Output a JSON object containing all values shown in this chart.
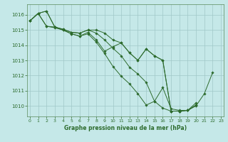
{
  "background_color": "#c5e8e8",
  "grid_color": "#a0c8c8",
  "line_color": "#2d6b2d",
  "marker_color": "#2d6b2d",
  "xlabel": "Graphe pression niveau de la mer (hPa)",
  "xlabel_color": "#2d6b2d",
  "tick_color": "#2d6b2d",
  "axis_color": "#5a8a5a",
  "ylim": [
    1009.3,
    1016.7
  ],
  "xlim": [
    -0.3,
    23.3
  ],
  "yticks": [
    1010,
    1011,
    1012,
    1013,
    1014,
    1015,
    1016
  ],
  "xticks": [
    0,
    1,
    2,
    3,
    4,
    5,
    6,
    7,
    8,
    9,
    10,
    11,
    12,
    13,
    14,
    15,
    16,
    17,
    18,
    19,
    20,
    21,
    22,
    23
  ],
  "series": [
    [
      1015.6,
      1016.1,
      1016.25,
      1015.2,
      1015.05,
      1014.85,
      1014.8,
      1015.0,
      1014.8,
      1014.35,
      1013.8,
      1013.3,
      1012.55,
      1012.1,
      1011.55,
      1010.3,
      1011.2,
      1009.8,
      1009.7,
      1009.7,
      1010.0,
      1010.8,
      1012.2,
      null
    ],
    [
      1015.6,
      1016.1,
      1015.25,
      1015.2,
      1015.0,
      1014.75,
      1014.6,
      1014.75,
      1014.2,
      1013.45,
      1012.6,
      1011.95,
      1011.45,
      1010.8,
      1010.05,
      1010.3,
      1009.85,
      1009.65,
      1009.65,
      1009.7,
      1010.05,
      null,
      null,
      null
    ],
    [
      1015.6,
      1016.1,
      1015.25,
      1015.15,
      1015.0,
      1014.75,
      1014.6,
      1014.85,
      1014.35,
      1013.6,
      1013.9,
      1014.15,
      1013.5,
      1013.0,
      1013.75,
      1013.3,
      1013.0,
      1009.65,
      1009.65,
      1009.7,
      1010.2,
      null,
      null,
      null
    ],
    [
      1015.6,
      1016.1,
      1016.25,
      1015.2,
      1015.05,
      1014.85,
      1014.8,
      1015.0,
      1015.0,
      1014.8,
      1014.35,
      1014.15,
      1013.5,
      1013.0,
      1013.75,
      1013.3,
      1013.0,
      1009.65,
      1009.65,
      1009.7,
      1010.05,
      null,
      null,
      null
    ]
  ]
}
